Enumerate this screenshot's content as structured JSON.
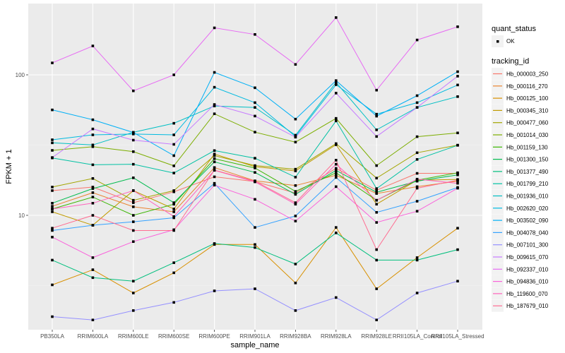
{
  "chart_data": {
    "type": "line",
    "title": "",
    "xlabel": "sample_name",
    "ylabel": "FPKM + 1",
    "y_scale": "log10",
    "ylim": [
      1.7,
      300
    ],
    "y_ticks": [
      10,
      100
    ],
    "y_tick_labels": [
      "10",
      "100"
    ],
    "grid": true,
    "legend_position": "right",
    "categories": [
      "PB350LA",
      "RRIM600LA",
      "RRIM600LE",
      "RRIM600SE",
      "RRIM600PE",
      "RRIM901LA",
      "RRIM928BA",
      "RRIM928LA",
      "RRIM928LE",
      "RRII105LA_Control",
      "RRII105LA_Stressed"
    ],
    "point_legend": {
      "title": "quant_status",
      "entries": [
        "OK"
      ]
    },
    "line_legend_title": "tracking_id",
    "series": [
      {
        "name": "Hb_000003_250",
        "color": "#F8766D",
        "values": [
          15.0,
          15.9,
          12.3,
          14.7,
          18.8,
          17.4,
          14.4,
          21.6,
          15.1,
          19.9,
          19.9
        ]
      },
      {
        "name": "Hb_000116_270",
        "color": "#EA8331",
        "values": [
          11.6,
          14.5,
          11.5,
          10.6,
          21.9,
          17.6,
          16.3,
          19.3,
          14.3,
          16.0,
          17.5
        ]
      },
      {
        "name": "Hb_000125_100",
        "color": "#D89000",
        "values": [
          3.2,
          4.1,
          2.8,
          3.9,
          6.2,
          6.2,
          3.3,
          8.2,
          3.0,
          5.0,
          8.1
        ]
      },
      {
        "name": "Hb_000345_310",
        "color": "#C09B00",
        "values": [
          10.6,
          8.5,
          15.0,
          11.1,
          27.3,
          22.2,
          20.7,
          31.8,
          12.0,
          17.8,
          18.0
        ]
      },
      {
        "name": "Hb_000477_060",
        "color": "#A3A500",
        "values": [
          15.9,
          18.3,
          12.8,
          15.0,
          26.6,
          22.6,
          21.3,
          32.4,
          18.4,
          27.9,
          31.6
        ]
      },
      {
        "name": "Hb_001014_030",
        "color": "#7CAE00",
        "values": [
          29.0,
          30.8,
          28.4,
          22.5,
          52.8,
          39.1,
          33.2,
          49.0,
          22.6,
          36.3,
          38.6
        ]
      },
      {
        "name": "Hb_001159_130",
        "color": "#39B600",
        "values": [
          11.1,
          13.5,
          10.0,
          12.0,
          25.3,
          21.7,
          14.8,
          20.1,
          12.8,
          17.8,
          20.1
        ]
      },
      {
        "name": "Hb_001300_150",
        "color": "#00BB4E",
        "values": [
          12.2,
          15.5,
          18.5,
          12.3,
          24.0,
          20.2,
          14.1,
          20.9,
          14.6,
          17.5,
          19.4
        ]
      },
      {
        "name": "Hb_001377_490",
        "color": "#00BF7D",
        "values": [
          4.8,
          3.6,
          3.4,
          4.6,
          6.3,
          5.9,
          4.5,
          7.5,
          4.8,
          4.8,
          5.7
        ]
      },
      {
        "name": "Hb_001799_210",
        "color": "#00C1A3",
        "values": [
          25.6,
          22.9,
          23.1,
          20.0,
          28.9,
          25.5,
          18.7,
          47.0,
          15.5,
          25.0,
          31.5
        ]
      },
      {
        "name": "Hb_001936_010",
        "color": "#00BFC4",
        "values": [
          32.8,
          31.7,
          39.0,
          45.2,
          60.0,
          58.6,
          37.2,
          88.4,
          40.6,
          58.6,
          70.0
        ]
      },
      {
        "name": "Hb_002620_020",
        "color": "#00BAE0",
        "values": [
          34.5,
          37.4,
          37.9,
          37.4,
          81.6,
          63.4,
          36.4,
          85.1,
          52.5,
          63.4,
          84.7
        ]
      },
      {
        "name": "Hb_003502_090",
        "color": "#00B0F6",
        "values": [
          56.3,
          47.9,
          38.9,
          26.6,
          104.1,
          80.9,
          48.4,
          91.0,
          50.8,
          71.1,
          105.3
        ]
      },
      {
        "name": "Hb_004078_040",
        "color": "#35A2FF",
        "values": [
          7.8,
          8.5,
          9.0,
          9.6,
          16.9,
          8.2,
          9.9,
          18.6,
          10.5,
          12.6,
          15.8
        ]
      },
      {
        "name": "Hb_007101_300",
        "color": "#9590FF",
        "values": [
          1.9,
          1.8,
          2.1,
          2.4,
          2.9,
          3.0,
          2.1,
          2.6,
          1.8,
          2.8,
          3.4
        ]
      },
      {
        "name": "Hb_009615_070",
        "color": "#C77CFF",
        "values": [
          25.8,
          41.2,
          34.3,
          32.0,
          61.5,
          50.9,
          36.0,
          74.1,
          36.4,
          58.6,
          97.8
        ]
      },
      {
        "name": "Hb_092337_010",
        "color": "#E76BF3",
        "values": [
          121.6,
          160.6,
          76.9,
          100.0,
          216.0,
          193.9,
          118.6,
          255.6,
          77.8,
          177.1,
          220.0
        ]
      },
      {
        "name": "Hb_094836_010",
        "color": "#FA62DB",
        "values": [
          7.0,
          5.0,
          6.5,
          7.9,
          16.4,
          13.0,
          9.1,
          16.0,
          8.9,
          10.7,
          15.6
        ]
      },
      {
        "name": "Hb_119600_070",
        "color": "#FF62BC",
        "values": [
          11.1,
          12.2,
          15.0,
          9.8,
          20.9,
          17.3,
          12.0,
          23.1,
          12.8,
          18.1,
          16.9
        ]
      },
      {
        "name": "Hb_187679_010",
        "color": "#FF6C91",
        "values": [
          8.1,
          10.0,
          7.8,
          7.8,
          21.0,
          17.5,
          12.3,
          24.7,
          5.7,
          15.6,
          17.8
        ]
      }
    ]
  }
}
